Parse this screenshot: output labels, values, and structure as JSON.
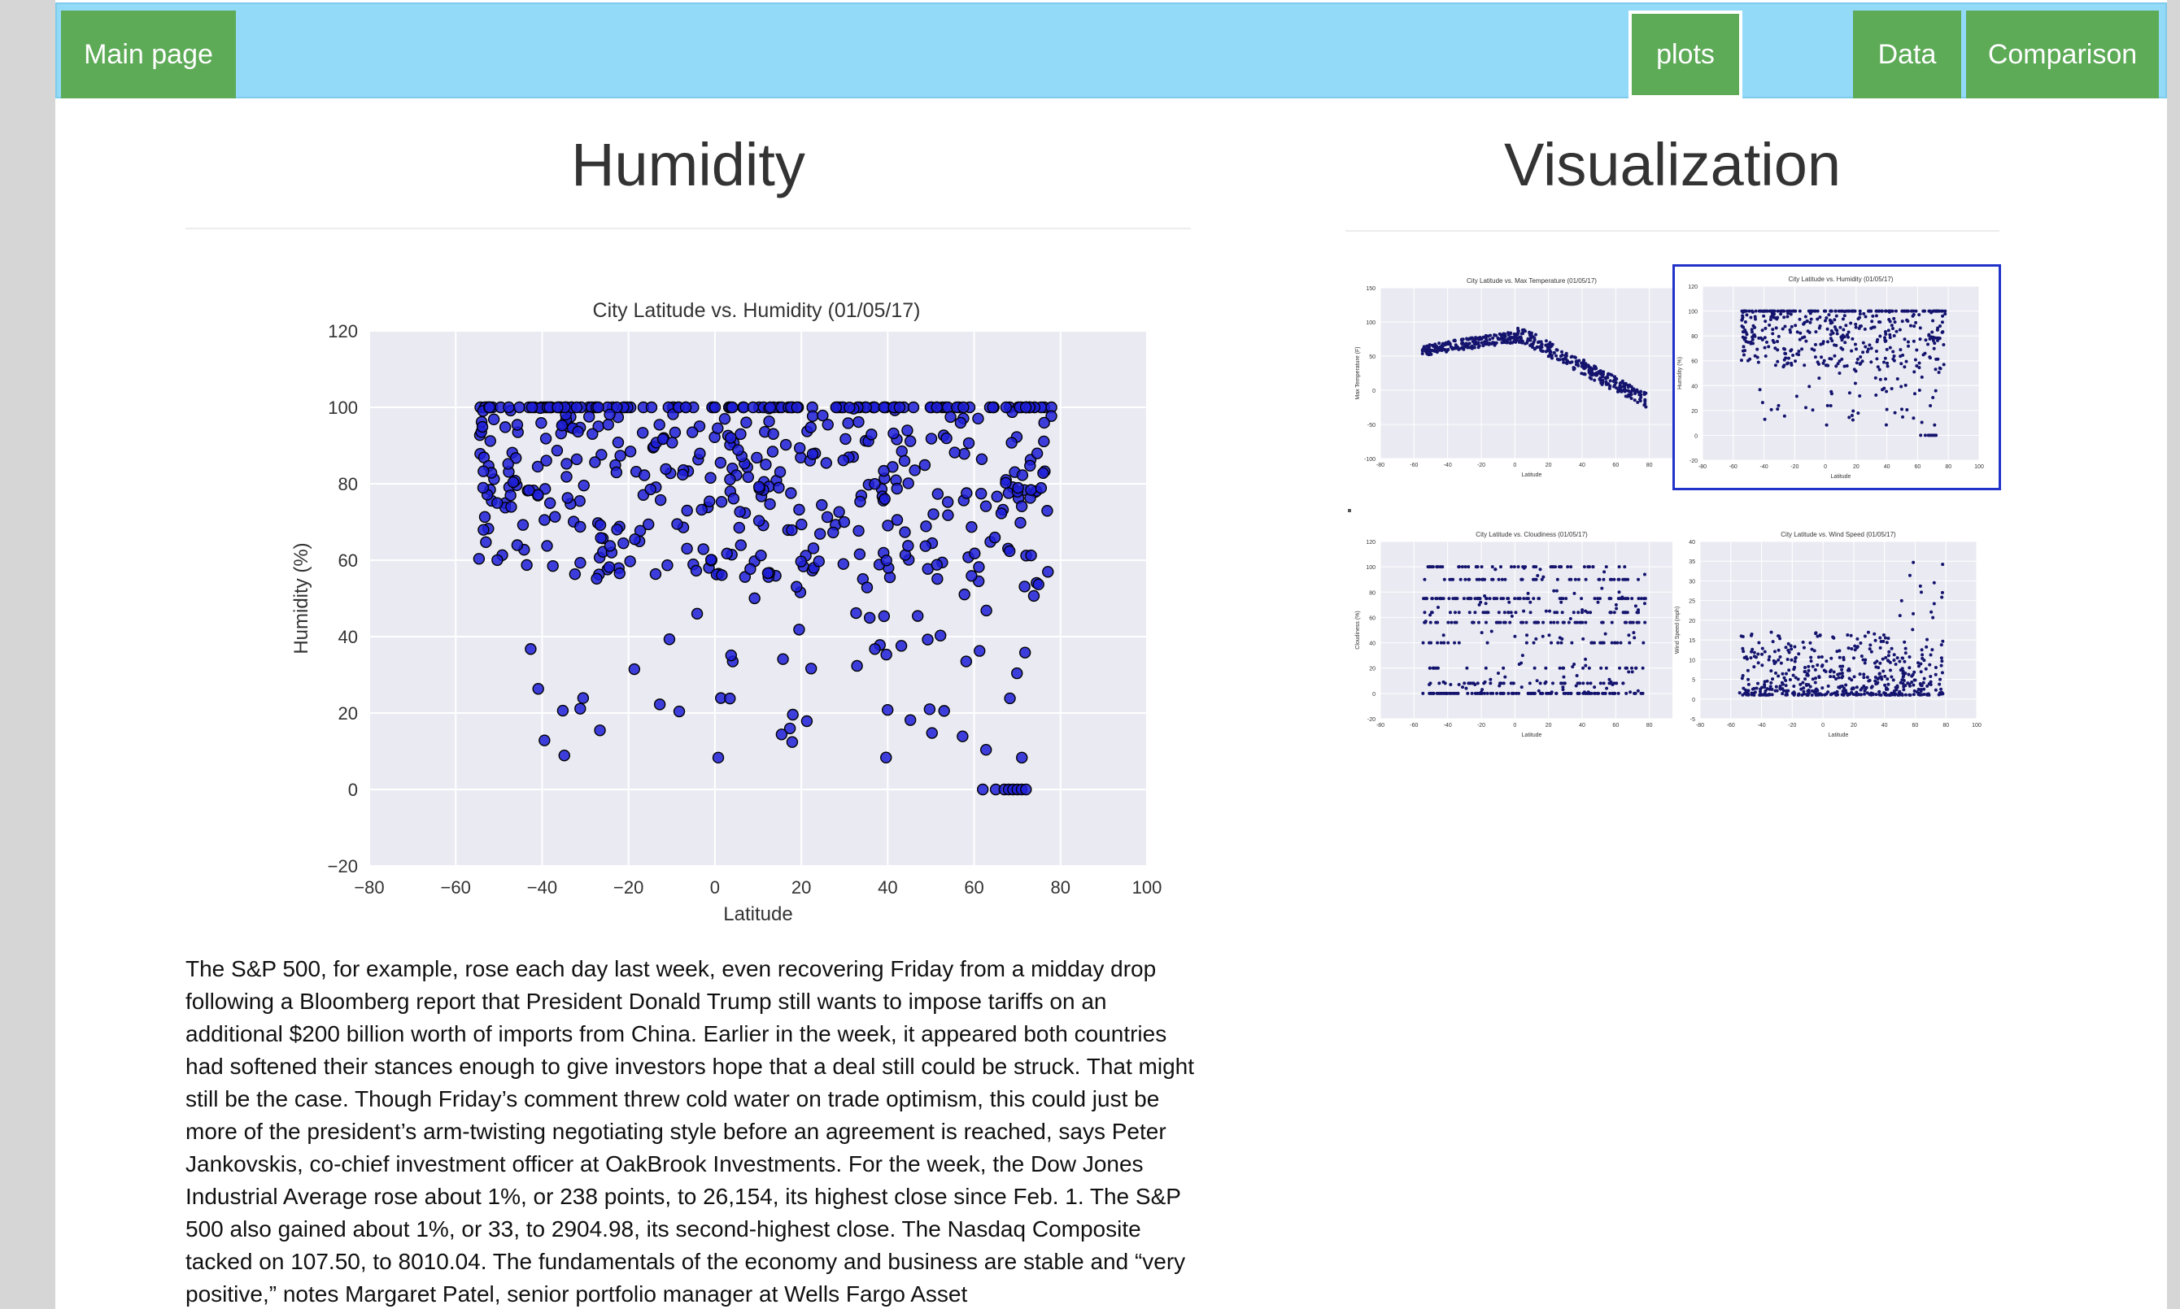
{
  "nav": {
    "main_label": "Main page",
    "plots_label": "plots",
    "data_label": "Data",
    "comparison_label": "Comparison"
  },
  "left_section": {
    "title": "Humidity"
  },
  "right_section": {
    "title": "Visualization"
  },
  "main_chart": {
    "chart_data": {
      "type": "scatter",
      "title": "City Latitude vs. Humidity (01/05/17)",
      "xlabel": "Latitude",
      "ylabel": "Humidity (%)",
      "xlim": [
        -80,
        100
      ],
      "ylim": [
        -20,
        120
      ],
      "xticks": [
        "−80",
        "−60",
        "−40",
        "−20",
        "0",
        "20",
        "40",
        "60",
        "80",
        "100"
      ],
      "yticks": [
        "120",
        "100",
        "80",
        "60",
        "40",
        "20",
        "0",
        "−20"
      ],
      "grid": true,
      "marker_color": "#1f1fd8"
    }
  },
  "thumbnails": [
    {
      "chart_data": {
        "type": "scatter",
        "title": "City Latitude vs. Max Temperature (01/05/17)",
        "xlabel": "Latitude",
        "ylabel": "Max Temperature (F)",
        "xlim": [
          -80,
          100
        ],
        "ylim": [
          -100,
          150
        ],
        "xticks": [
          "-80",
          "-60",
          "-40",
          "-20",
          "0",
          "20",
          "40",
          "60",
          "80",
          "100"
        ],
        "yticks": [
          "150",
          "100",
          "50",
          "0",
          "-50",
          "-100"
        ]
      }
    },
    {
      "chart_data": {
        "type": "scatter",
        "title": "City Latitude vs. Humidity (01/05/17)",
        "xlabel": "Latitude",
        "ylabel": "Humidity (%)",
        "xlim": [
          -80,
          100
        ],
        "ylim": [
          -20,
          120
        ],
        "xticks": [
          "-80",
          "-60",
          "-40",
          "-20",
          "0",
          "20",
          "40",
          "60",
          "80",
          "100"
        ],
        "yticks": [
          "120",
          "100",
          "80",
          "60",
          "40",
          "20",
          "0",
          "-20"
        ]
      }
    },
    {
      "chart_data": {
        "type": "scatter",
        "title": "City Latitude vs. Cloudiness (01/05/17)",
        "xlabel": "Latitude",
        "ylabel": "Cloudiness (%)",
        "xlim": [
          -80,
          100
        ],
        "ylim": [
          -20,
          120
        ],
        "xticks": [
          "-80",
          "-60",
          "-40",
          "-20",
          "0",
          "20",
          "40",
          "60",
          "80",
          "100"
        ],
        "yticks": [
          "120",
          "100",
          "80",
          "60",
          "40",
          "20",
          "0",
          "-20"
        ]
      }
    },
    {
      "chart_data": {
        "type": "scatter",
        "title": "City Latitude vs. Wind Speed (01/05/17)",
        "xlabel": "Latitude",
        "ylabel": "Wind Speed (mph)",
        "xlim": [
          -80,
          100
        ],
        "ylim": [
          -5,
          40
        ],
        "xticks": [
          "-80",
          "-60",
          "-40",
          "-20",
          "0",
          "20",
          "40",
          "60",
          "80",
          "100"
        ],
        "yticks": [
          "40",
          "35",
          "30",
          "25",
          "20",
          "15",
          "10",
          "5",
          "0",
          "-5"
        ]
      }
    }
  ],
  "article_text": "The S&P 500, for example, rose each day last week, even recovering Friday from a midday drop following a Bloomberg report that President Donald Trump still wants to impose tariffs on an additional $200 billion worth of imports from China. Earlier in the week, it appeared both countries had softened their stances enough to give investors hope that a deal still could be struck. That might still be the case. Though Friday’s comment threw cold water on trade optimism, this could just be more of the president’s arm-twisting negotiating style before an agreement is reached, says Peter Jankovskis, co-chief investment officer at OakBrook Investments. For the week, the Dow Jones Industrial Average rose about 1%, or 238 points, to 26,154, its highest close since Feb. 1. The S&P 500 also gained about 1%, or 33, to 2904.98, its second-highest close. The Nasdaq Composite tacked on 107.50, to 8010.04. The fundamentals of the economy and business are stable and “very positive,” notes Margaret Patel, senior portfolio manager at Wells Fargo Asset"
}
